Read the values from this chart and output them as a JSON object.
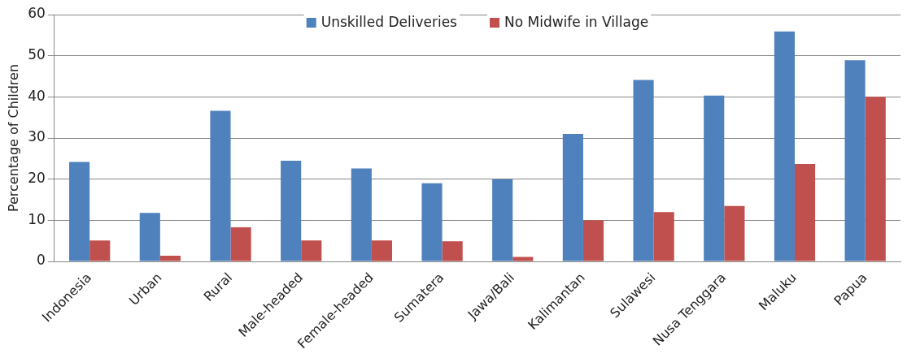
{
  "chart_data": {
    "type": "bar",
    "ylabel": "Percentage of Children",
    "categories": [
      "Indonesia",
      "Urban",
      "Rural",
      "Male-headed",
      "Female-headed",
      "Sumatera",
      "Jawa/Bali",
      "Kalimantan",
      "Sulawesi",
      "Nusa Tenggara",
      "Maluku",
      "Papua"
    ],
    "series": [
      {
        "name": "Unskilled Deliveries",
        "color": "#4f81bd",
        "values": [
          24.2,
          11.8,
          36.6,
          24.5,
          22.6,
          19.0,
          20.0,
          31.0,
          44.1,
          40.3,
          55.9,
          48.9
        ]
      },
      {
        "name": "No Midwife in Village",
        "color": "#c0504d",
        "values": [
          5.1,
          1.4,
          8.3,
          5.1,
          5.1,
          4.9,
          1.1,
          10.0,
          12.0,
          13.5,
          23.7,
          40.0
        ]
      }
    ],
    "ylim": [
      0,
      60
    ],
    "yticks": [
      0,
      10,
      20,
      30,
      40,
      50,
      60
    ],
    "grid": "y",
    "legend": "top"
  }
}
